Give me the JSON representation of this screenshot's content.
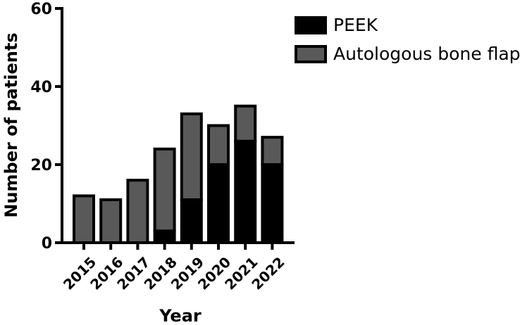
{
  "chart_data": {
    "type": "bar",
    "stacked": true,
    "categories": [
      "2015",
      "2016",
      "2017",
      "2018",
      "2019",
      "2020",
      "2021",
      "2022"
    ],
    "series": [
      {
        "name": "PEEK",
        "values": [
          0,
          0,
          0,
          3,
          11,
          20,
          26,
          20
        ],
        "color": "#000000"
      },
      {
        "name": "Autologous bone flap",
        "values": [
          12,
          11,
          16,
          21,
          22,
          10,
          9,
          7
        ],
        "color": "#595959"
      }
    ],
    "xlabel": "Year",
    "ylabel": "Number of patients",
    "ylim": [
      0,
      60
    ],
    "yticks": [
      0,
      20,
      40,
      60
    ],
    "grid": false,
    "legend_position": "top-right"
  }
}
